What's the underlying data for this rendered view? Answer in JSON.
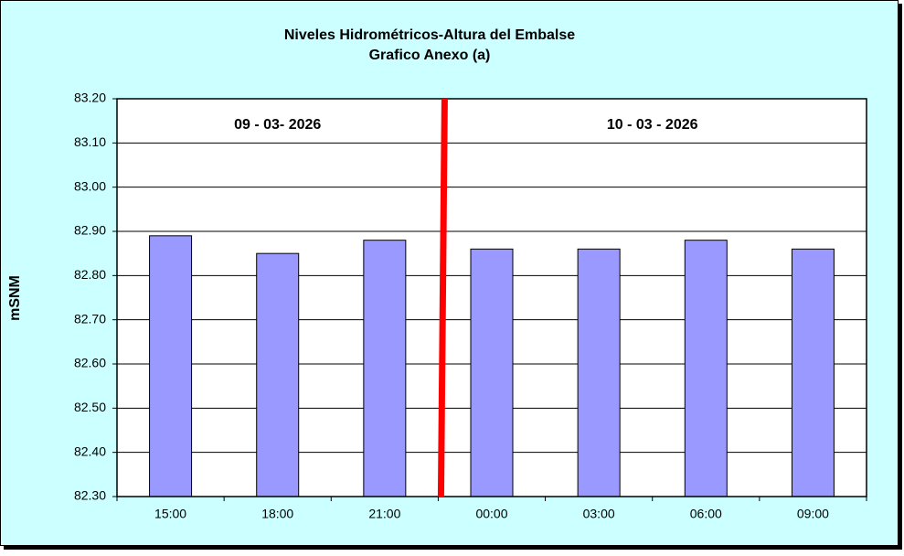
{
  "chart_data": {
    "type": "bar",
    "title": "Niveles Hidrométricos-Altura del Embalse",
    "subtitle": "Grafico Anexo (a)",
    "y_label": "mSNM",
    "annotations": [
      "09 - 03- 2026",
      "10 - 03 - 2026"
    ],
    "categories": [
      "15:00",
      "18:00",
      "21:00",
      "00:00",
      "03:00",
      "06:00",
      "09:00"
    ],
    "values": [
      82.89,
      82.85,
      82.88,
      82.86,
      82.86,
      82.88,
      82.86
    ],
    "color": "#9999ff",
    "ylim": [
      82.3,
      83.2
    ],
    "yticks": [
      {
        "value": 82.3,
        "label": "82.30"
      },
      {
        "value": 82.4,
        "label": "82.40"
      },
      {
        "value": 82.5,
        "label": "82.50"
      },
      {
        "value": 82.6,
        "label": "82.60"
      },
      {
        "value": 82.7,
        "label": "82.70"
      },
      {
        "value": 82.8,
        "label": "82.80"
      },
      {
        "value": 82.9,
        "label": "82.90"
      },
      {
        "value": 83.0,
        "label": "83.00"
      },
      {
        "value": 83.1,
        "label": "83.10"
      },
      {
        "value": 83.2,
        "label": "83.20"
      }
    ],
    "grid": true
  }
}
